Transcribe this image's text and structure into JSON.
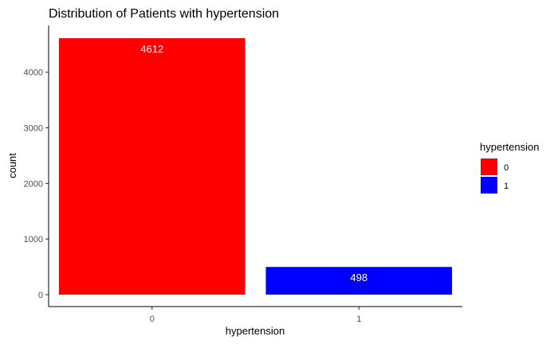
{
  "chart_data": {
    "type": "bar",
    "title": "Distribution of Patients with hypertension",
    "xlabel": "hypertension",
    "ylabel": "count",
    "categories": [
      "0",
      "1"
    ],
    "values": [
      4612,
      498
    ],
    "data_labels": [
      "4612",
      "498"
    ],
    "colors": [
      "#ff0000",
      "#0000ff"
    ],
    "ylim": [
      0,
      4612
    ],
    "yticks": [
      0,
      1000,
      2000,
      3000,
      4000
    ],
    "ytick_labels": [
      "0",
      "1000",
      "2000",
      "3000",
      "4000"
    ],
    "grid": false,
    "legend": {
      "title": "hypertension",
      "placement": "right",
      "entries": [
        "0",
        "1"
      ]
    }
  }
}
